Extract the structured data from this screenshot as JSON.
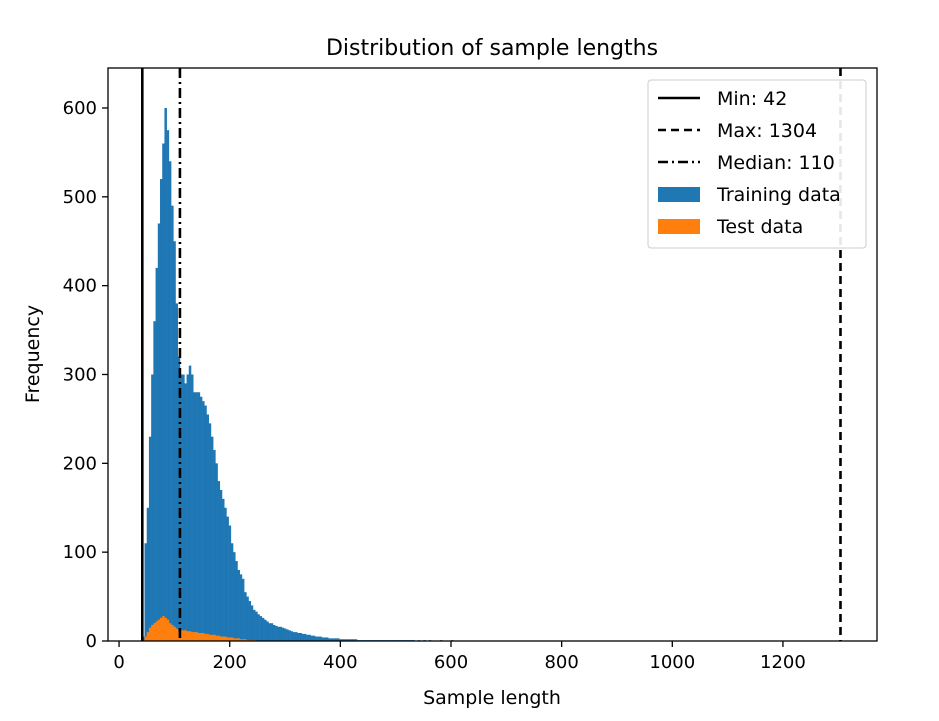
{
  "chart_data": {
    "type": "bar",
    "title": "Distribution of sample lengths",
    "xlabel": "Sample length",
    "ylabel": "Frequency",
    "xlim": [
      -20,
      1370
    ],
    "ylim": [
      0,
      645
    ],
    "xticks": [
      0,
      200,
      400,
      600,
      800,
      1000,
      1200
    ],
    "yticks": [
      0,
      100,
      200,
      300,
      400,
      500,
      600
    ],
    "grid": false,
    "legend_position": "top-right",
    "reference_lines": [
      {
        "name": "Min: 42",
        "x": 42,
        "style": "solid"
      },
      {
        "name": "Max: 1304",
        "x": 1304,
        "style": "dashed"
      },
      {
        "name": "Median: 110",
        "x": 110,
        "style": "dashdot"
      }
    ],
    "series": [
      {
        "name": "Training data",
        "color": "#1f77b4",
        "bins": [
          [
            42,
            5
          ],
          [
            46,
            110
          ],
          [
            50,
            150
          ],
          [
            54,
            230
          ],
          [
            58,
            300
          ],
          [
            62,
            360
          ],
          [
            66,
            420
          ],
          [
            70,
            470
          ],
          [
            74,
            520
          ],
          [
            78,
            560
          ],
          [
            82,
            600
          ],
          [
            86,
            575
          ],
          [
            90,
            540
          ],
          [
            94,
            490
          ],
          [
            98,
            450
          ],
          [
            102,
            380
          ],
          [
            106,
            320
          ],
          [
            110,
            300
          ],
          [
            114,
            300
          ],
          [
            118,
            290
          ],
          [
            122,
            300
          ],
          [
            126,
            310
          ],
          [
            130,
            300
          ],
          [
            134,
            280
          ],
          [
            138,
            280
          ],
          [
            142,
            280
          ],
          [
            146,
            275
          ],
          [
            150,
            270
          ],
          [
            154,
            265
          ],
          [
            158,
            255
          ],
          [
            162,
            245
          ],
          [
            166,
            230
          ],
          [
            170,
            215
          ],
          [
            174,
            200
          ],
          [
            178,
            180
          ],
          [
            182,
            170
          ],
          [
            186,
            160
          ],
          [
            190,
            150
          ],
          [
            194,
            140
          ],
          [
            198,
            130
          ],
          [
            202,
            110
          ],
          [
            206,
            100
          ],
          [
            210,
            90
          ],
          [
            214,
            80
          ],
          [
            218,
            75
          ],
          [
            222,
            70
          ],
          [
            226,
            55
          ],
          [
            230,
            50
          ],
          [
            234,
            45
          ],
          [
            238,
            40
          ],
          [
            242,
            35
          ],
          [
            246,
            33
          ],
          [
            250,
            30
          ],
          [
            254,
            28
          ],
          [
            258,
            26
          ],
          [
            262,
            24
          ],
          [
            266,
            22
          ],
          [
            270,
            20
          ],
          [
            274,
            20
          ],
          [
            278,
            18
          ],
          [
            282,
            17
          ],
          [
            286,
            16
          ],
          [
            290,
            16
          ],
          [
            294,
            15
          ],
          [
            298,
            14
          ],
          [
            302,
            13
          ],
          [
            306,
            12
          ],
          [
            310,
            11
          ],
          [
            314,
            10
          ],
          [
            318,
            10
          ],
          [
            322,
            9
          ],
          [
            326,
            9
          ],
          [
            330,
            8
          ],
          [
            334,
            8
          ],
          [
            338,
            7
          ],
          [
            342,
            7
          ],
          [
            346,
            6
          ],
          [
            350,
            6
          ],
          [
            354,
            5
          ],
          [
            358,
            5
          ],
          [
            362,
            5
          ],
          [
            366,
            4
          ],
          [
            370,
            4
          ],
          [
            374,
            4
          ],
          [
            378,
            3
          ],
          [
            382,
            3
          ],
          [
            386,
            3
          ],
          [
            390,
            3
          ],
          [
            394,
            3
          ],
          [
            398,
            2
          ],
          [
            402,
            2
          ],
          [
            406,
            2
          ],
          [
            410,
            2
          ],
          [
            414,
            2
          ],
          [
            418,
            2
          ],
          [
            422,
            2
          ],
          [
            426,
            2
          ],
          [
            430,
            1
          ],
          [
            434,
            1
          ],
          [
            438,
            1
          ],
          [
            442,
            1
          ],
          [
            446,
            1
          ],
          [
            450,
            1
          ],
          [
            454,
            1
          ],
          [
            458,
            1
          ],
          [
            462,
            1
          ],
          [
            466,
            1
          ],
          [
            470,
            1
          ],
          [
            474,
            1
          ],
          [
            478,
            1
          ],
          [
            482,
            1
          ],
          [
            486,
            1
          ],
          [
            490,
            1
          ],
          [
            494,
            1
          ],
          [
            498,
            1
          ],
          [
            502,
            1
          ],
          [
            506,
            1
          ],
          [
            510,
            1
          ],
          [
            514,
            1
          ],
          [
            518,
            1
          ],
          [
            522,
            1
          ],
          [
            526,
            1
          ],
          [
            530,
            1
          ],
          [
            540,
            1
          ],
          [
            550,
            1
          ],
          [
            560,
            1
          ],
          [
            580,
            1
          ],
          [
            600,
            1
          ]
        ]
      },
      {
        "name": "Test data",
        "color": "#ff7f0e",
        "bins": [
          [
            46,
            5
          ],
          [
            50,
            10
          ],
          [
            54,
            15
          ],
          [
            58,
            18
          ],
          [
            62,
            20
          ],
          [
            66,
            22
          ],
          [
            70,
            24
          ],
          [
            74,
            26
          ],
          [
            78,
            28
          ],
          [
            82,
            26
          ],
          [
            86,
            24
          ],
          [
            90,
            20
          ],
          [
            94,
            18
          ],
          [
            98,
            16
          ],
          [
            102,
            14
          ],
          [
            106,
            12
          ],
          [
            110,
            12
          ],
          [
            114,
            12
          ],
          [
            118,
            12
          ],
          [
            122,
            11
          ],
          [
            126,
            11
          ],
          [
            130,
            10
          ],
          [
            134,
            10
          ],
          [
            138,
            10
          ],
          [
            142,
            9
          ],
          [
            146,
            9
          ],
          [
            150,
            9
          ],
          [
            154,
            8
          ],
          [
            158,
            8
          ],
          [
            162,
            7
          ],
          [
            166,
            7
          ],
          [
            170,
            7
          ],
          [
            174,
            6
          ],
          [
            178,
            6
          ],
          [
            182,
            5
          ],
          [
            186,
            5
          ],
          [
            190,
            5
          ],
          [
            194,
            4
          ],
          [
            198,
            4
          ],
          [
            202,
            4
          ],
          [
            206,
            3
          ],
          [
            210,
            3
          ],
          [
            214,
            3
          ],
          [
            218,
            2
          ],
          [
            222,
            2
          ],
          [
            226,
            2
          ],
          [
            230,
            1
          ],
          [
            234,
            1
          ],
          [
            238,
            1
          ],
          [
            242,
            1
          ]
        ]
      }
    ]
  }
}
